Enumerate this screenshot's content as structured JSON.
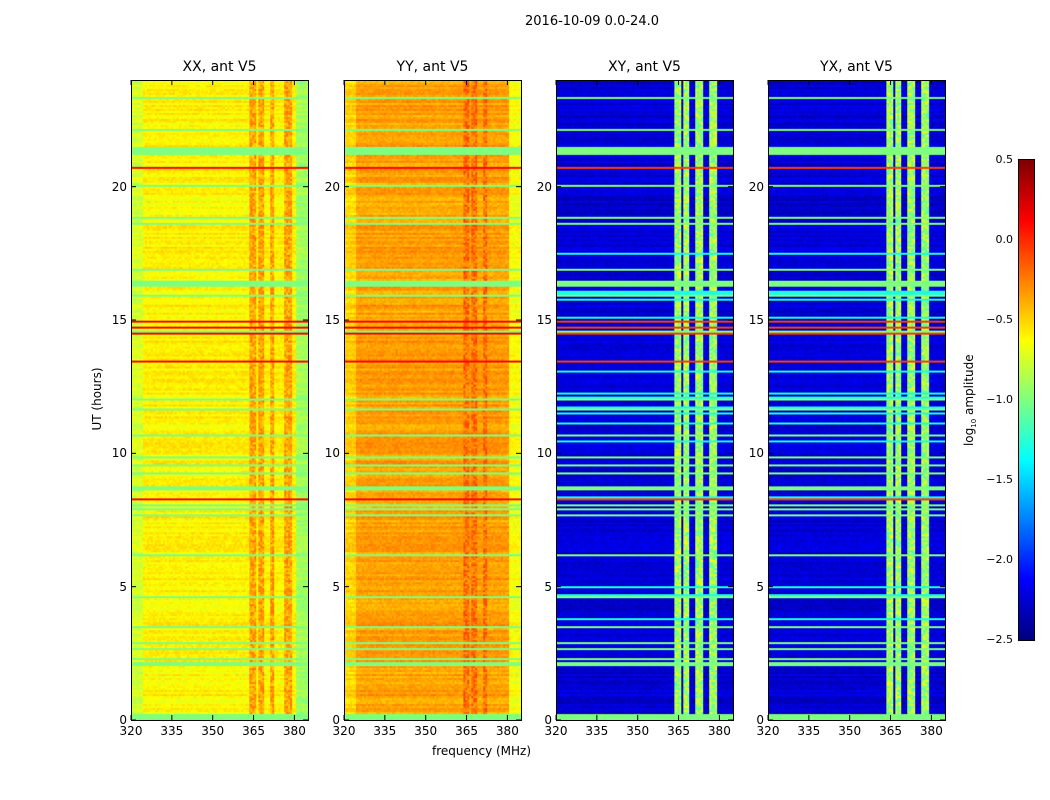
{
  "suptitle": "2016-10-09 0.0-24.0",
  "xlabel": "frequency (MHz)",
  "ylabel": "UT (hours)",
  "colorbar": {
    "label_main": "log",
    "label_sub": "10",
    "label_rest": " amplitude",
    "vmin": -2.5,
    "vmax": 0.5,
    "ticks": [
      "0.5",
      "0.0",
      "−0.5",
      "−1.0",
      "−1.5",
      "−2.0",
      "−2.5"
    ],
    "tick_values": [
      0.5,
      0.0,
      -0.5,
      -1.0,
      -1.5,
      -2.0,
      -2.5
    ],
    "colormap": "jet"
  },
  "chart_data": [
    {
      "type": "heatmap",
      "title": "XX, ant V5",
      "xlim": [
        320,
        385
      ],
      "ylim": [
        0,
        24
      ],
      "xticks": [
        "320",
        "335",
        "350",
        "365",
        "380"
      ],
      "xtick_values": [
        320,
        335,
        350,
        365,
        380
      ],
      "yticks": [
        "0",
        "5",
        "10",
        "15",
        "20"
      ],
      "ytick_values": [
        0,
        5,
        10,
        15,
        20
      ],
      "base": -0.6,
      "rfi_level": 0.0,
      "rfi_bands_mhz": [
        [
          363,
          366
        ],
        [
          367,
          369
        ],
        [
          371,
          373
        ],
        [
          376,
          379
        ]
      ],
      "flag_rows_hours": [
        [
          21.2,
          21.5
        ],
        [
          2.0,
          2.2
        ],
        [
          8.6,
          8.8
        ],
        [
          16.3,
          16.5
        ],
        [
          0.1,
          0.2
        ]
      ]
    },
    {
      "type": "heatmap",
      "title": "YY, ant V5",
      "xlim": [
        320,
        385
      ],
      "ylim": [
        0,
        24
      ],
      "xticks": [
        "320",
        "335",
        "350",
        "365",
        "380"
      ],
      "xtick_values": [
        320,
        335,
        350,
        365,
        380
      ],
      "yticks": [
        "0",
        "5",
        "10",
        "15",
        "20"
      ],
      "ytick_values": [
        0,
        5,
        10,
        15,
        20
      ],
      "base": -0.35,
      "rfi_level": 0.0,
      "rfi_bands_mhz": [
        [
          364,
          366
        ],
        [
          367,
          369
        ],
        [
          371,
          373
        ]
      ],
      "flag_rows_hours": [
        [
          21.2,
          21.5
        ],
        [
          2.0,
          2.2
        ],
        [
          8.6,
          8.8
        ],
        [
          16.3,
          16.5
        ],
        [
          0.1,
          0.2
        ]
      ]
    },
    {
      "type": "heatmap",
      "title": "XY, ant V5",
      "xlim": [
        320,
        385
      ],
      "ylim": [
        0,
        24
      ],
      "xticks": [
        "320",
        "335",
        "350",
        "365",
        "380"
      ],
      "xtick_values": [
        320,
        335,
        350,
        365,
        380
      ],
      "yticks": [
        "0",
        "5",
        "10",
        "15",
        "20"
      ],
      "ytick_values": [
        0,
        5,
        10,
        15,
        20
      ],
      "base": -2.25,
      "rfi_level": -0.9,
      "rfi_bands_mhz": [
        [
          363,
          366
        ],
        [
          367,
          369
        ],
        [
          371,
          374
        ],
        [
          376,
          379
        ]
      ],
      "flag_rows_hours": [
        [
          21.2,
          21.5
        ],
        [
          2.0,
          2.2
        ],
        [
          8.6,
          8.8
        ],
        [
          16.3,
          16.5
        ],
        [
          0.1,
          0.2
        ]
      ]
    },
    {
      "type": "heatmap",
      "title": "YX, ant V5",
      "xlim": [
        320,
        385
      ],
      "ylim": [
        0,
        24
      ],
      "xticks": [
        "320",
        "335",
        "350",
        "365",
        "380"
      ],
      "xtick_values": [
        320,
        335,
        350,
        365,
        380
      ],
      "yticks": [
        "0",
        "5",
        "10",
        "15",
        "20"
      ],
      "ytick_values": [
        0,
        5,
        10,
        15,
        20
      ],
      "base": -2.25,
      "rfi_level": -0.9,
      "rfi_bands_mhz": [
        [
          363,
          366
        ],
        [
          367,
          369
        ],
        [
          371,
          374
        ],
        [
          376,
          379
        ]
      ],
      "flag_rows_hours": [
        [
          21.2,
          21.5
        ],
        [
          2.0,
          2.2
        ],
        [
          8.6,
          8.8
        ],
        [
          16.3,
          16.5
        ],
        [
          0.1,
          0.2
        ]
      ]
    }
  ]
}
